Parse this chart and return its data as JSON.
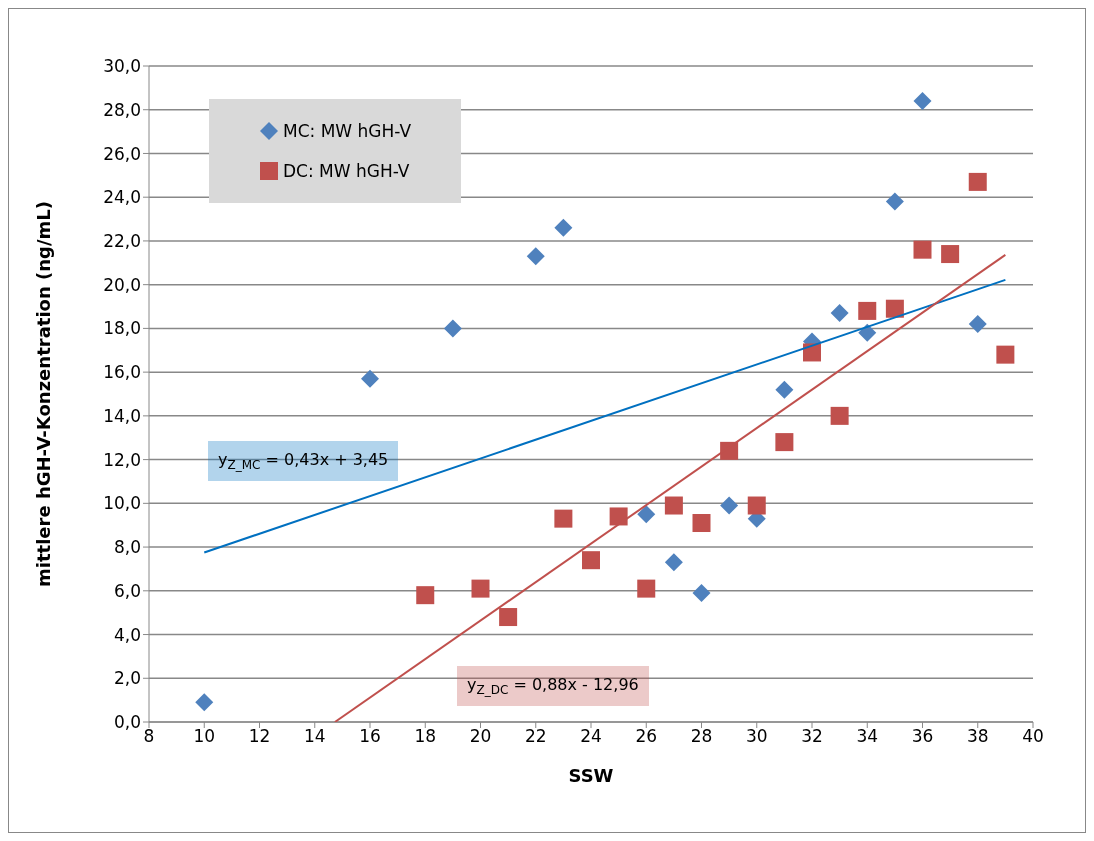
{
  "chart_data": {
    "type": "scatter",
    "xlabel": "SSW",
    "ylabel": "mittlere hGH-V-Konzentration (ng/mL)",
    "xlim": [
      8,
      40
    ],
    "xticks": [
      8,
      10,
      12,
      14,
      16,
      18,
      20,
      22,
      24,
      26,
      28,
      30,
      32,
      34,
      36,
      38,
      40
    ],
    "ylim": [
      0,
      30
    ],
    "yticks": [
      {
        "value": 0,
        "label": "0,0"
      },
      {
        "value": 2,
        "label": "2,0"
      },
      {
        "value": 4,
        "label": "4,0"
      },
      {
        "value": 6,
        "label": "6,0"
      },
      {
        "value": 8,
        "label": "8,0"
      },
      {
        "value": 10,
        "label": "10,0"
      },
      {
        "value": 12,
        "label": "12,0"
      },
      {
        "value": 14,
        "label": "14,0"
      },
      {
        "value": 16,
        "label": "16,0"
      },
      {
        "value": 18,
        "label": "18,0"
      },
      {
        "value": 20,
        "label": "20,0"
      },
      {
        "value": 22,
        "label": "22,0"
      },
      {
        "value": 24,
        "label": "24,0"
      },
      {
        "value": 26,
        "label": "26,0"
      },
      {
        "value": 28,
        "label": "28,0"
      },
      {
        "value": 30,
        "label": "30,0"
      }
    ],
    "grid": "y",
    "legend": "top left",
    "series": [
      {
        "name": "MC: MW hGH-V",
        "marker": "diamond",
        "color": "#4f81bd",
        "x": [
          10,
          16,
          19,
          22,
          23,
          26,
          27,
          28,
          29,
          30,
          31,
          32,
          33,
          34,
          35,
          36,
          38
        ],
        "values": [
          0.9,
          15.7,
          18.0,
          21.3,
          22.6,
          9.5,
          7.3,
          5.9,
          9.9,
          9.3,
          15.2,
          17.4,
          18.7,
          17.8,
          23.8,
          28.4,
          18.2
        ]
      },
      {
        "name": "DC: MW hGH-V",
        "marker": "square",
        "color": "#c0504d",
        "x": [
          18,
          20,
          21,
          23,
          24,
          25,
          26,
          27,
          28,
          29,
          30,
          31,
          32,
          33,
          34,
          35,
          36,
          37,
          38,
          39
        ],
        "values": [
          5.8,
          6.1,
          4.8,
          9.3,
          7.4,
          9.4,
          6.1,
          9.9,
          9.1,
          12.4,
          9.9,
          12.8,
          16.9,
          14.0,
          18.8,
          18.9,
          21.6,
          21.4,
          24.7,
          16.8
        ]
      },
      {
        "type": "line",
        "marker": "none",
        "color": "#0070c0",
        "x": [
          10,
          39
        ],
        "values": [
          7.75,
          20.22
        ]
      },
      {
        "type": "line",
        "marker": "none",
        "color": "#c0504d",
        "x": [
          14.73,
          39
        ],
        "values": [
          0,
          21.36
        ]
      }
    ],
    "annotations": [
      "y$_{Z_MC}$ = 0,43x + 3,45",
      "y$_{Z_DC}$ = 0,88x - 12,96"
    ]
  }
}
